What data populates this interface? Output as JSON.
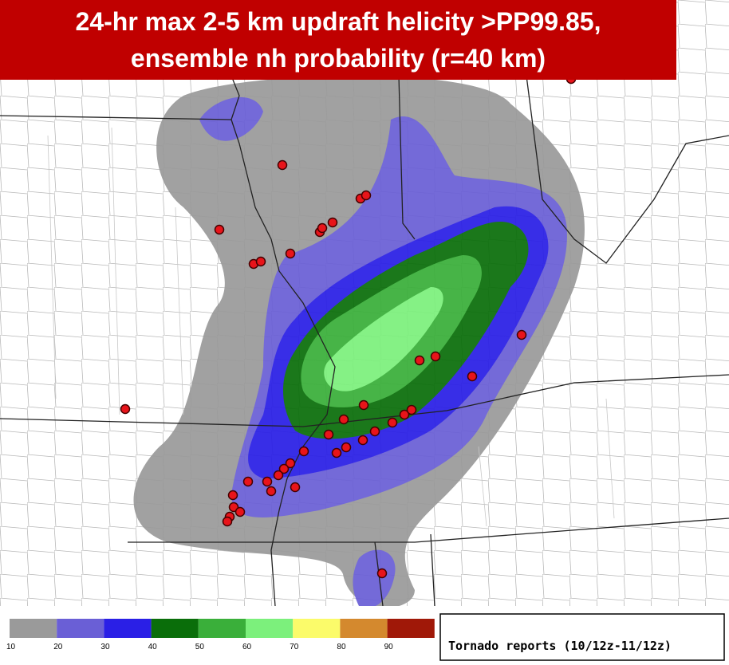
{
  "title": {
    "lines": [
      "24-hr max 2-5 km updraft helicity >PP99.85,",
      "ensemble nh probability (r=40 km)"
    ]
  },
  "colorbar": {
    "labels": [
      10,
      20,
      30,
      40,
      50,
      60,
      70,
      80,
      90
    ],
    "colors": [
      "#9a9a9a",
      "#6a5fd6",
      "#2a1fe6",
      "#0a6e0a",
      "#3aaf3a",
      "#7cf07c",
      "#fbfb6a",
      "#d4892e",
      "#a01808"
    ]
  },
  "legend": "Tornado reports (10/12z-11/12z)"
}
